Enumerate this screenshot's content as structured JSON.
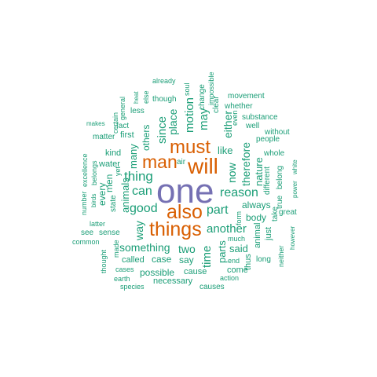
{
  "colors": {
    "big": "#7570b3",
    "large": "#d95f02",
    "medium": "#1b9e77"
  },
  "words": [
    {
      "text": "one",
      "tier": "big"
    },
    {
      "text": "will",
      "tier": "large"
    },
    {
      "text": "must",
      "tier": "large"
    },
    {
      "text": "man",
      "tier": "large"
    },
    {
      "text": "also",
      "tier": "large"
    },
    {
      "text": "things",
      "tier": "large"
    },
    {
      "text": "thing",
      "tier": "medium"
    },
    {
      "text": "can",
      "tier": "medium"
    },
    {
      "text": "good",
      "tier": "medium"
    },
    {
      "text": "reason",
      "tier": "medium"
    },
    {
      "text": "part",
      "tier": "medium"
    },
    {
      "text": "another",
      "tier": "medium"
    },
    {
      "text": "something",
      "tier": "medium"
    },
    {
      "text": "two",
      "tier": "medium"
    },
    {
      "text": "time",
      "tier": "medium"
    },
    {
      "text": "since",
      "tier": "medium"
    },
    {
      "text": "place",
      "tier": "medium"
    },
    {
      "text": "motion",
      "tier": "medium"
    },
    {
      "text": "may",
      "tier": "medium"
    },
    {
      "text": "either",
      "tier": "medium"
    },
    {
      "text": "like",
      "tier": "medium"
    },
    {
      "text": "therefore",
      "tier": "medium"
    },
    {
      "text": "nature",
      "tier": "medium"
    },
    {
      "text": "now",
      "tier": "medium"
    },
    {
      "text": "many",
      "tier": "medium"
    },
    {
      "text": "others",
      "tier": "medium"
    },
    {
      "text": "animals",
      "tier": "medium"
    },
    {
      "text": "way",
      "tier": "medium"
    },
    {
      "text": "parts",
      "tier": "medium"
    },
    {
      "text": "said",
      "tier": "medium"
    },
    {
      "text": "always",
      "tier": "medium"
    },
    {
      "text": "body",
      "tier": "medium"
    },
    {
      "text": "case",
      "tier": "medium"
    },
    {
      "text": "say",
      "tier": "medium"
    },
    {
      "text": "possible",
      "tier": "medium"
    },
    {
      "text": "cause",
      "tier": "medium"
    },
    {
      "text": "come",
      "tier": "medium"
    },
    {
      "text": "necessary",
      "tier": "medium"
    },
    {
      "text": "called",
      "tier": "medium"
    },
    {
      "text": "kind",
      "tier": "medium"
    },
    {
      "text": "water",
      "tier": "medium"
    },
    {
      "text": "first",
      "tier": "medium"
    },
    {
      "text": "matter",
      "tier": "medium"
    },
    {
      "text": "fact",
      "tier": "medium"
    },
    {
      "text": "less",
      "tier": "medium"
    },
    {
      "text": "though",
      "tier": "medium"
    },
    {
      "text": "air",
      "tier": "medium"
    },
    {
      "text": "every",
      "tier": "medium"
    },
    {
      "text": "men",
      "tier": "medium"
    },
    {
      "text": "sense",
      "tier": "medium"
    },
    {
      "text": "see",
      "tier": "medium"
    },
    {
      "text": "whole",
      "tier": "medium"
    },
    {
      "text": "people",
      "tier": "medium"
    },
    {
      "text": "well",
      "tier": "medium"
    },
    {
      "text": "substance",
      "tier": "medium"
    },
    {
      "text": "movement",
      "tier": "medium"
    },
    {
      "text": "whether",
      "tier": "medium"
    },
    {
      "text": "without",
      "tier": "medium"
    },
    {
      "text": "different",
      "tier": "medium"
    },
    {
      "text": "true",
      "tier": "medium"
    },
    {
      "text": "belong",
      "tier": "medium"
    },
    {
      "text": "great",
      "tier": "medium"
    },
    {
      "text": "take",
      "tier": "medium"
    },
    {
      "text": "just",
      "tier": "medium"
    },
    {
      "text": "animal",
      "tier": "medium"
    },
    {
      "text": "thus",
      "tier": "medium"
    },
    {
      "text": "long",
      "tier": "medium"
    },
    {
      "text": "neither",
      "tier": "medium"
    },
    {
      "text": "however",
      "tier": "medium"
    },
    {
      "text": "power",
      "tier": "medium"
    },
    {
      "text": "white",
      "tier": "medium"
    },
    {
      "text": "much",
      "tier": "medium"
    },
    {
      "text": "end",
      "tier": "medium"
    },
    {
      "text": "action",
      "tier": "medium"
    },
    {
      "text": "causes",
      "tier": "medium"
    },
    {
      "text": "form",
      "tier": "medium"
    },
    {
      "text": "clear",
      "tier": "medium"
    },
    {
      "text": "even",
      "tier": "medium"
    },
    {
      "text": "impossible",
      "tier": "medium"
    },
    {
      "text": "change",
      "tier": "medium"
    },
    {
      "text": "soul",
      "tier": "medium"
    },
    {
      "text": "already",
      "tier": "medium"
    },
    {
      "text": "else",
      "tier": "medium"
    },
    {
      "text": "heat",
      "tier": "medium"
    },
    {
      "text": "general",
      "tier": "medium"
    },
    {
      "text": "certain",
      "tier": "medium"
    },
    {
      "text": "makes",
      "tier": "medium"
    },
    {
      "text": "excellence",
      "tier": "medium"
    },
    {
      "text": "belongs",
      "tier": "medium"
    },
    {
      "text": "birds",
      "tier": "medium"
    },
    {
      "text": "number",
      "tier": "medium"
    },
    {
      "text": "state",
      "tier": "medium"
    },
    {
      "text": "yet",
      "tier": "medium"
    },
    {
      "text": "latter",
      "tier": "medium"
    },
    {
      "text": "common",
      "tier": "medium"
    },
    {
      "text": "thought",
      "tier": "medium"
    },
    {
      "text": "made",
      "tier": "medium"
    },
    {
      "text": "cases",
      "tier": "medium"
    },
    {
      "text": "earth",
      "tier": "medium"
    },
    {
      "text": "species",
      "tier": "medium"
    }
  ]
}
